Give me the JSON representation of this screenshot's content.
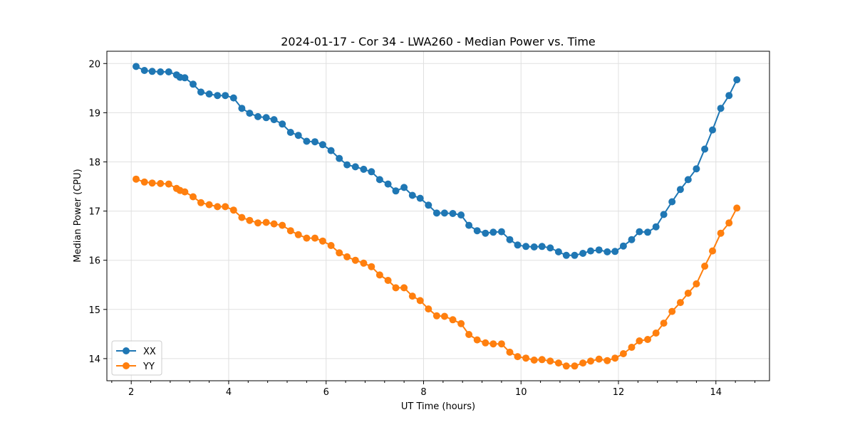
{
  "chart_data": {
    "type": "line",
    "title": "2024-01-17 - Cor 34 - LWA260 - Median Power vs. Time",
    "xlabel": "UT Time (hours)",
    "ylabel": "Median Power (CPU)",
    "xlim": [
      1.5,
      15.1
    ],
    "ylim": [
      13.55,
      20.25
    ],
    "xticks": [
      2,
      4,
      6,
      8,
      10,
      12,
      14
    ],
    "yticks": [
      14,
      15,
      16,
      17,
      18,
      19,
      20
    ],
    "grid": true,
    "legend_position": "lower-left",
    "x": [
      2.1,
      2.27,
      2.43,
      2.6,
      2.77,
      2.93,
      3.0,
      3.1,
      3.27,
      3.43,
      3.6,
      3.77,
      3.93,
      4.1,
      4.27,
      4.43,
      4.6,
      4.77,
      4.93,
      5.1,
      5.27,
      5.43,
      5.6,
      5.77,
      5.93,
      6.1,
      6.27,
      6.43,
      6.6,
      6.77,
      6.93,
      7.1,
      7.27,
      7.43,
      7.6,
      7.77,
      7.93,
      8.1,
      8.27,
      8.43,
      8.6,
      8.77,
      8.93,
      9.1,
      9.27,
      9.43,
      9.6,
      9.77,
      9.93,
      10.1,
      10.27,
      10.43,
      10.6,
      10.77,
      10.93,
      11.1,
      11.27,
      11.43,
      11.6,
      11.77,
      11.93,
      12.1,
      12.27,
      12.43,
      12.6,
      12.77,
      12.93,
      13.1,
      13.27,
      13.43,
      13.6,
      13.77,
      13.93,
      14.1,
      14.27,
      14.43
    ],
    "series": [
      {
        "name": "XX",
        "color": "#1f77b4",
        "values": [
          19.94,
          19.86,
          19.84,
          19.83,
          19.83,
          19.77,
          19.72,
          19.71,
          19.58,
          19.42,
          19.38,
          19.35,
          19.35,
          19.3,
          19.09,
          18.99,
          18.92,
          18.9,
          18.86,
          18.77,
          18.6,
          18.54,
          18.42,
          18.41,
          18.35,
          18.23,
          18.07,
          17.94,
          17.9,
          17.85,
          17.8,
          17.64,
          17.55,
          17.41,
          17.48,
          17.32,
          17.26,
          17.12,
          16.96,
          16.96,
          16.95,
          16.92,
          16.71,
          16.6,
          16.55,
          16.57,
          16.58,
          16.42,
          16.31,
          16.28,
          16.27,
          16.28,
          16.25,
          16.17,
          16.1,
          16.1,
          16.14,
          16.19,
          16.21,
          16.17,
          16.18,
          16.29,
          16.42,
          16.58,
          16.57,
          16.68,
          16.93,
          17.19,
          17.44,
          17.64,
          17.86,
          18.26,
          18.65,
          19.09,
          19.35,
          19.67
        ]
      },
      {
        "name": "YY",
        "color": "#ff7f0e",
        "values": [
          17.65,
          17.59,
          17.57,
          17.56,
          17.55,
          17.46,
          17.42,
          17.39,
          17.29,
          17.17,
          17.13,
          17.09,
          17.09,
          17.02,
          16.87,
          16.81,
          16.76,
          16.77,
          16.74,
          16.71,
          16.6,
          16.52,
          16.45,
          16.45,
          16.39,
          16.3,
          16.15,
          16.07,
          16.0,
          15.94,
          15.87,
          15.7,
          15.59,
          15.44,
          15.44,
          15.27,
          15.18,
          15.01,
          14.87,
          14.86,
          14.79,
          14.71,
          14.49,
          14.38,
          14.32,
          14.3,
          14.3,
          14.13,
          14.04,
          14.01,
          13.97,
          13.98,
          13.95,
          13.91,
          13.85,
          13.85,
          13.91,
          13.95,
          13.99,
          13.96,
          14.01,
          14.1,
          14.23,
          14.36,
          14.39,
          14.52,
          14.72,
          14.96,
          15.14,
          15.33,
          15.52,
          15.88,
          16.19,
          16.55,
          16.76,
          17.06
        ]
      }
    ]
  }
}
